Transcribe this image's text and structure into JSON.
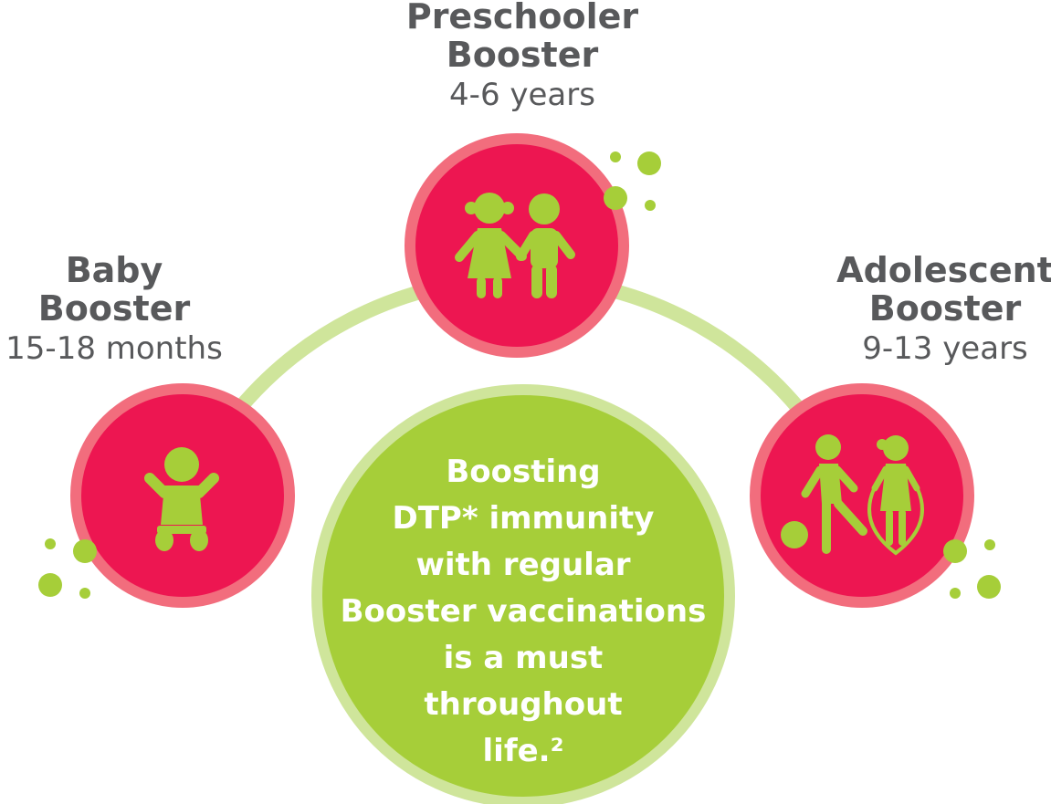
{
  "stages": {
    "preschooler": {
      "title_line1": "Preschooler",
      "title_line2": "Booster",
      "age": "4-6 years",
      "icon": "children-holding-hands-icon"
    },
    "baby": {
      "title_line1": "Baby",
      "title_line2": "Booster",
      "age": "15-18 months",
      "icon": "baby-icon"
    },
    "adolescent": {
      "title_line1": "Adolescent",
      "title_line2": "Booster",
      "age": "9-13 years",
      "icon": "kids-playing-icon"
    }
  },
  "center_message": {
    "lines": [
      "Boosting",
      "DTP* immunity",
      "with regular",
      "Booster vaccinations",
      "is a must",
      "throughout",
      "life.²"
    ]
  },
  "colors": {
    "stage_circle": "#ed1651",
    "stage_ring": "#f26d7d",
    "green": "#a6ce39",
    "arc": "#cfe59b",
    "text": "#58595b",
    "white": "#ffffff"
  }
}
